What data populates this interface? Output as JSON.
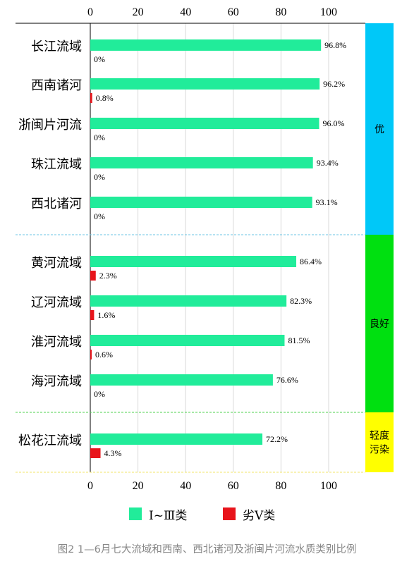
{
  "chart_data": {
    "type": "bar",
    "orientation": "horizontal",
    "categories": [
      "长江流域",
      "西南诸河",
      "浙闽片河流",
      "珠江流域",
      "西北诸河",
      "黄河流域",
      "辽河流域",
      "淮河流域",
      "海河流域",
      "松花江流域"
    ],
    "series": [
      {
        "name": "Ⅰ~Ⅲ类",
        "color": "#21ec9a",
        "values": [
          96.8,
          96.2,
          96.0,
          93.4,
          93.1,
          86.4,
          82.3,
          81.5,
          76.6,
          72.2
        ],
        "labels": [
          "96.8%",
          "96.2%",
          "96.0%",
          "93.4%",
          "93.1%",
          "86.4%",
          "82.3%",
          "81.5%",
          "76.6%",
          "72.2%"
        ]
      },
      {
        "name": "劣Ⅴ类",
        "color": "#e8141b",
        "values": [
          0,
          0.8,
          0,
          0,
          0,
          2.3,
          1.6,
          0.6,
          0,
          4.3
        ],
        "labels": [
          "0%",
          "0.8%",
          "0%",
          "0%",
          "0%",
          "2.3%",
          "1.6%",
          "0.6%",
          "0%",
          "4.3%"
        ]
      }
    ],
    "xlim": [
      0,
      100
    ],
    "xticks": [
      "0",
      "20",
      "40",
      "60",
      "80",
      "100"
    ],
    "grid": "vertical",
    "legend_position": "bottom",
    "bands": [
      {
        "label": "优",
        "color": "#00c8f8",
        "border_color": "#6ec6e6",
        "categories": [
          "长江流域",
          "西南诸河",
          "浙闽片河流",
          "珠江流域",
          "西北诸河"
        ]
      },
      {
        "label": "良好",
        "color": "#00e010",
        "border_color": "#4fd04f",
        "categories": [
          "黄河流域",
          "辽河流域",
          "淮河流域",
          "海河流域"
        ]
      },
      {
        "label": "轻度污染",
        "label_lines": [
          "轻度",
          "污染"
        ],
        "color": "#ffff00",
        "border_color": "#f2e46a",
        "categories": [
          "松花江流域"
        ]
      }
    ]
  },
  "legend": {
    "items": [
      {
        "label": "Ⅰ~Ⅲ类",
        "color": "#21ec9a"
      },
      {
        "label": "劣Ⅴ类",
        "color": "#e8141b"
      }
    ]
  },
  "caption": "图2  1—6月七大流域和西南、西北诸河及浙闽片河流水质类别比例"
}
